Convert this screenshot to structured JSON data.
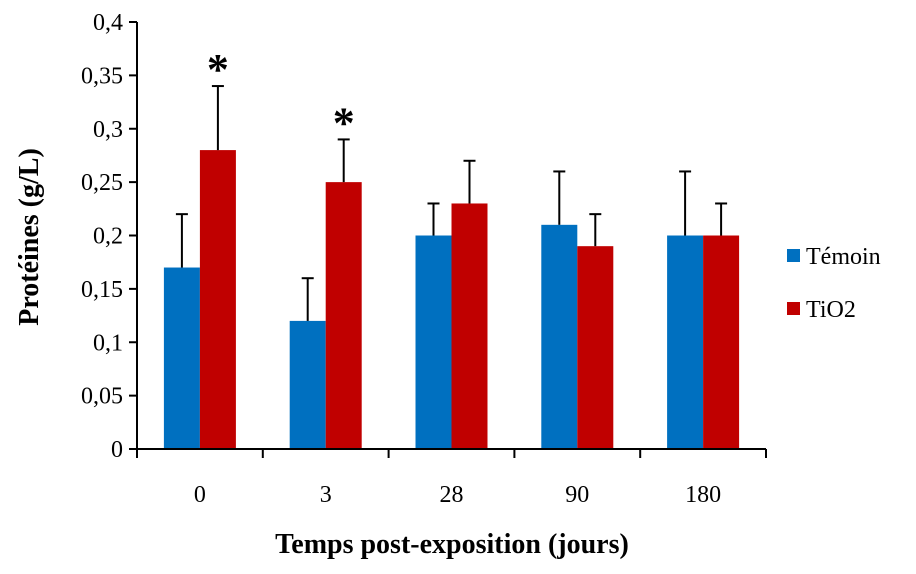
{
  "chart_data": {
    "type": "bar",
    "categories": [
      "0",
      "3",
      "28",
      "90",
      "180"
    ],
    "series": [
      {
        "name": "Témoin",
        "color": "#0070C0",
        "values": [
          0.17,
          0.12,
          0.2,
          0.21,
          0.2
        ],
        "error": [
          0.05,
          0.04,
          0.03,
          0.05,
          0.06
        ]
      },
      {
        "name": "TiO2",
        "color": "#C00000",
        "values": [
          0.28,
          0.25,
          0.23,
          0.19,
          0.2
        ],
        "error": [
          0.06,
          0.04,
          0.04,
          0.03,
          0.03
        ]
      }
    ],
    "significance": [
      {
        "category": "0",
        "series": "TiO2",
        "label": "*"
      },
      {
        "category": "3",
        "series": "TiO2",
        "label": "*"
      }
    ],
    "xlabel": "Temps post-exposition (jours)",
    "ylabel": "Protéines (g/L)",
    "ylim": [
      0,
      0.4
    ],
    "yticks": [
      "0",
      "0,05",
      "0,1",
      "0,15",
      "0,2",
      "0,25",
      "0,3",
      "0,35",
      "0,4"
    ],
    "grid": false,
    "legend_position": "right"
  }
}
